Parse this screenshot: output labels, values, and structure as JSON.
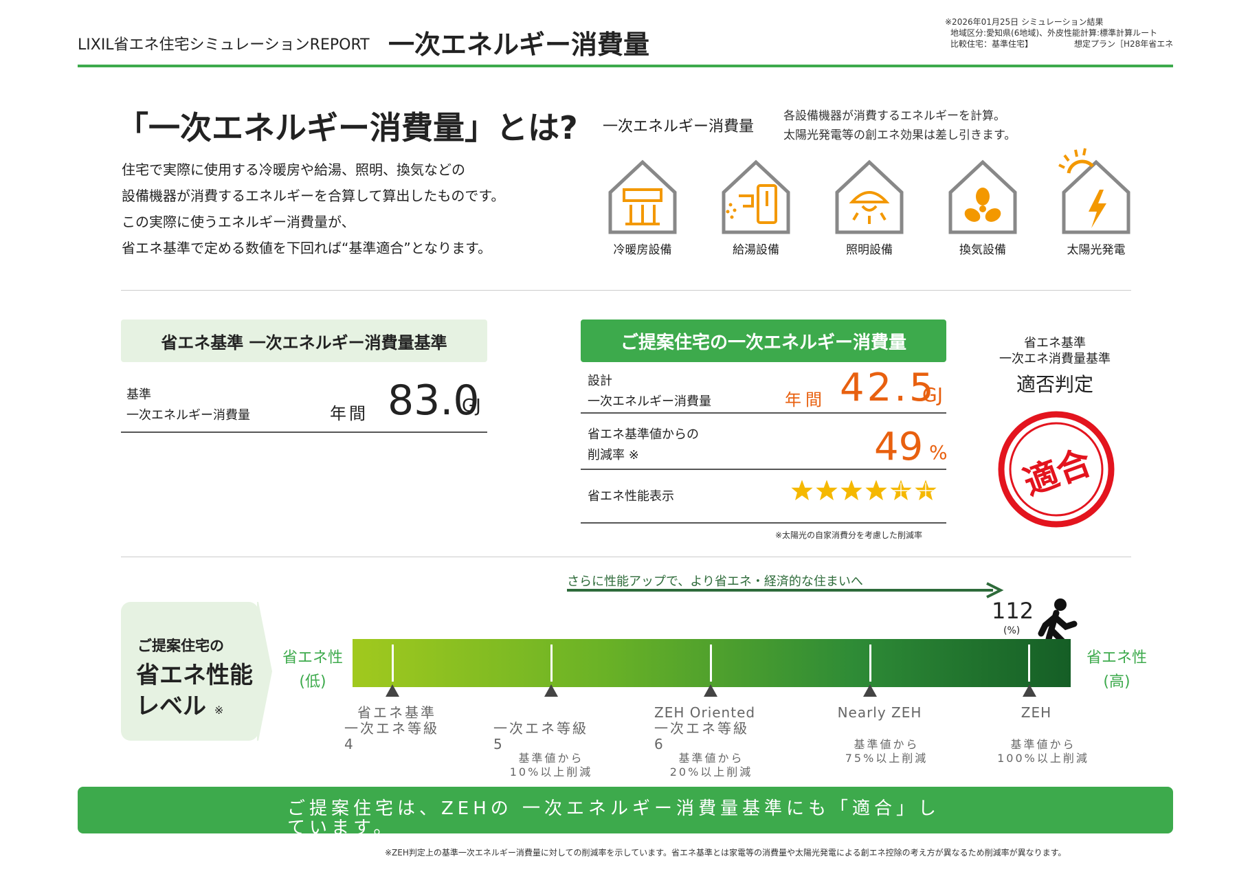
{
  "header": {
    "brand": "LIXIL省エネ住宅シミュレーションREPORT",
    "title": "一次エネルギー消費量",
    "meta_date": "※2026年01月25日 シミュレーション結果",
    "meta_region": "地域区分:愛知県(6地域)、外皮性能計算:標準計算ルート",
    "meta_compare_label": "比較住宅：基準住宅】",
    "meta_compare_plan": "想定プラン［H28年省エネ"
  },
  "intro": {
    "title": "「一次エネルギー消費量」とは?",
    "lines": [
      "住宅で実際に使用する冷暖房や給湯、照明、換気などの",
      "設備機器が消費するエネルギーを合算して算出したものです。",
      "この実際に使うエネルギー消費量が、",
      "省エネ基準で定める数値を下回れば“基準適合”となります。"
    ],
    "energy_label": "一次エネルギー消費量",
    "energy_desc1": "各設備機器が消費するエネルギーを計算。",
    "energy_desc2": "太陽光発電等の創エネ効果は差し引きます。",
    "equipment": [
      {
        "label": "冷暖房設備",
        "icon": "aircon-icon"
      },
      {
        "label": "給湯設備",
        "icon": "water-heater-icon"
      },
      {
        "label": "照明設備",
        "icon": "lighting-icon"
      },
      {
        "label": "換気設備",
        "icon": "fan-icon"
      },
      {
        "label": "太陽光発電",
        "icon": "solar-power-icon"
      }
    ]
  },
  "standard": {
    "header": "省エネ基準 一次エネルギー消費量基準",
    "label1": "基準",
    "label2": "一次エネルギー消費量",
    "annual": "年間",
    "value": "83.0",
    "unit": "GJ"
  },
  "proposal": {
    "header": "ご提案住宅の一次エネルギー消費量",
    "design_label1": "設計",
    "design_label2": "一次エネルギー消費量",
    "annual": "年間",
    "value": "42.5",
    "unit": "GJ",
    "reduction_label1": "省エネ基準値からの",
    "reduction_label2": "削減率 ※",
    "reduction_value": "49",
    "reduction_unit": "%",
    "perf_label": "省エネ性能表示",
    "stars": 6,
    "note": "※太陽光の自家消費分を考慮した削減率"
  },
  "judgment": {
    "title1": "省エネ基準",
    "title2": "一次エネ消費量基準",
    "title3": "適否判定",
    "stamp": "適合",
    "stamp_color": "#e3141e"
  },
  "level": {
    "title1": "ご提案住宅の",
    "title2": "省エネ性能",
    "title3": "レベル",
    "title3_mark": "※",
    "low1": "省エネ性",
    "low2": "(低)",
    "high1": "省エネ性",
    "high2": "(高)",
    "arrow_text": "さらに性能アップで、より省エネ・経済的な住まいへ",
    "percent": "112",
    "percent_unit": "(%)",
    "level_value": 112,
    "markers": [
      {
        "name": "省エネ基準",
        "sub1": "一次エネ等級",
        "sub2": "4",
        "note1": "",
        "note2": ""
      },
      {
        "name": "",
        "sub1": "一次エネ等級",
        "sub2": "5",
        "note1": "基準値から",
        "note2": "10%以上削減"
      },
      {
        "name": "ZEH Oriented",
        "sub1": "一次エネ等級",
        "sub2": "6",
        "note1": "基準値から",
        "note2": "20%以上削減"
      },
      {
        "name": "Nearly ZEH",
        "sub1": "",
        "sub2": "",
        "note1": "基準値から",
        "note2": "75%以上削減"
      },
      {
        "name": "ZEH",
        "sub1": "",
        "sub2": "",
        "note1": "基準値から",
        "note2": "100%以上削減"
      }
    ]
  },
  "banner": "ご提案住宅は、ZEHの 一次エネルギー消費量基準にも「適合」しています。",
  "bottom_note": "※ZEH判定上の基準一次エネルギー消費量に対しての削減率を示しています。省エネ基準とは家電等の消費量や太陽光発電による創エネ控除の考え方が異なるため削減率が異なります。",
  "colors": {
    "accent": "#3daa4c",
    "orange": "#e8600f",
    "icon_orange": "#f39800",
    "star": "#f5b800"
  }
}
